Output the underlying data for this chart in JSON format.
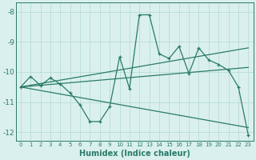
{
  "xlabel": "Humidex (Indice chaleur)",
  "background_color": "#daf0ee",
  "line_color": "#2a7a6a",
  "grid_color": "#b8dcd8",
  "xlim": [
    -0.5,
    23.5
  ],
  "ylim": [
    -12.3,
    -7.7
  ],
  "yticks": [
    -12,
    -11,
    -10,
    -9,
    -8
  ],
  "xticks": [
    0,
    1,
    2,
    3,
    4,
    5,
    6,
    7,
    8,
    9,
    10,
    11,
    12,
    13,
    14,
    15,
    16,
    17,
    18,
    19,
    20,
    21,
    22,
    23
  ],
  "curve1_x": [
    0,
    1,
    2,
    3,
    4,
    5,
    6,
    7,
    8,
    9,
    10,
    11,
    12,
    13,
    14,
    15,
    16,
    17,
    18,
    19,
    20,
    21,
    22,
    23
  ],
  "curve1_y": [
    -10.5,
    -10.15,
    -10.45,
    -10.2,
    -10.4,
    -10.7,
    -11.1,
    -11.65,
    -11.65,
    -11.15,
    -9.5,
    -10.55,
    -8.1,
    -8.1,
    -9.4,
    -9.55,
    -9.15,
    -10.05,
    -9.2,
    -9.6,
    -9.75,
    -9.95,
    -10.5,
    -12.1
  ],
  "line1_x": [
    0,
    23
  ],
  "line1_y": [
    -10.5,
    -9.2
  ],
  "line2_x": [
    0,
    23
  ],
  "line2_y": [
    -10.5,
    -9.85
  ],
  "line3_x": [
    0,
    23
  ],
  "line3_y": [
    -10.5,
    -11.85
  ]
}
